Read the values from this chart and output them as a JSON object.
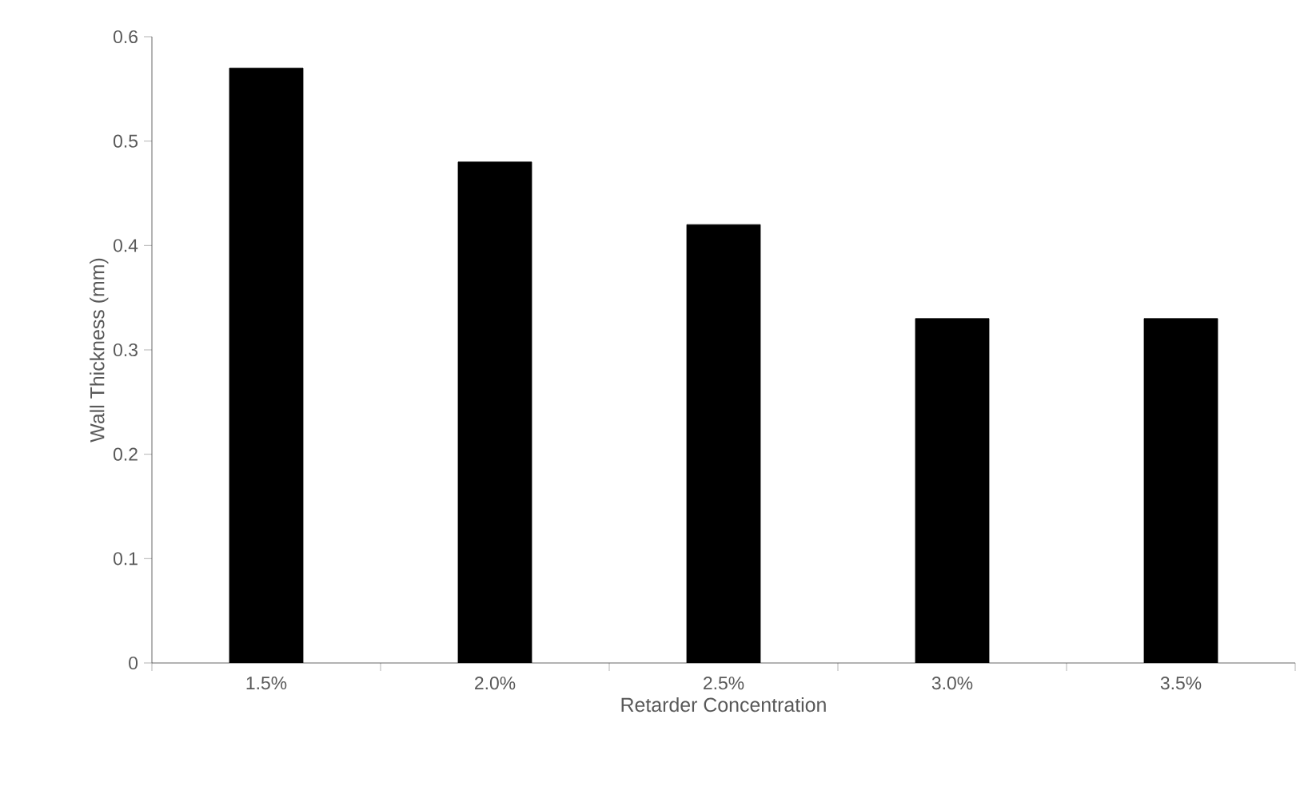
{
  "chart_data": {
    "type": "bar",
    "xlabel": "Retarder Concentration",
    "ylabel": "Wall Thickness (mm)",
    "categories": [
      "1.5%",
      "2.0%",
      "2.5%",
      "3.0%",
      "3.5%"
    ],
    "values": [
      0.57,
      0.48,
      0.42,
      0.33,
      0.33
    ],
    "color": "#000000",
    "ylim": [
      0,
      0.6
    ],
    "yticks": [
      0,
      0.1,
      0.2,
      0.3,
      0.4,
      0.5,
      0.6
    ]
  }
}
